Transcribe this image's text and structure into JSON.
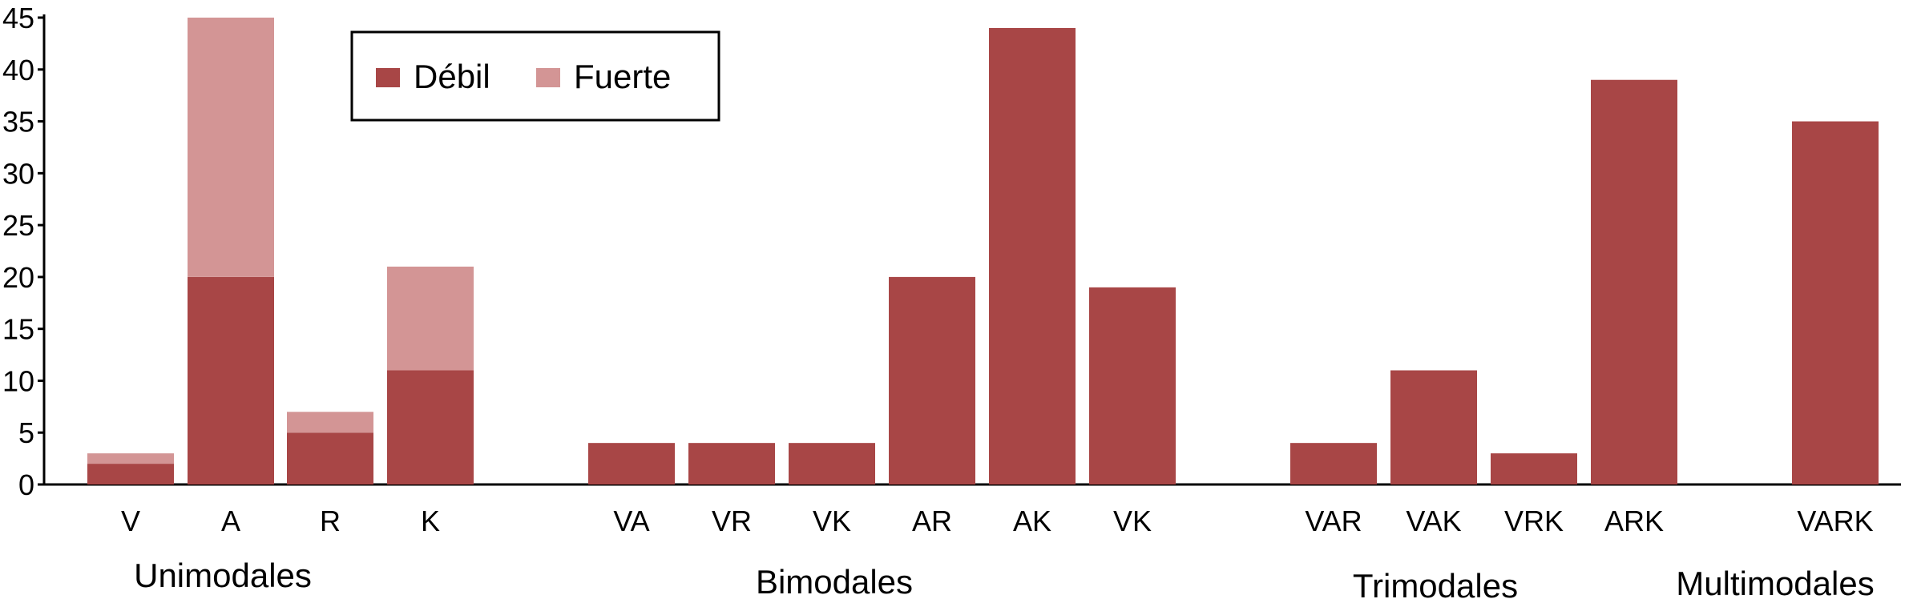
{
  "chart_data": {
    "type": "bar",
    "stacked": true,
    "ylim": [
      0,
      45
    ],
    "yticks": [
      0,
      5,
      10,
      15,
      20,
      25,
      30,
      35,
      40,
      45
    ],
    "categories": [
      "V",
      "A",
      "R",
      "K",
      "VA",
      "VR",
      "VK",
      "AR",
      "AK",
      "VK",
      "VAR",
      "VAK",
      "VRK",
      "ARK",
      "VARK"
    ],
    "groups": [
      {
        "label": "Unimodales",
        "categories": [
          "V",
          "A",
          "R",
          "K"
        ]
      },
      {
        "label": "Bimodales",
        "categories": [
          "VA",
          "VR",
          "VK",
          "AR",
          "AK",
          "VK"
        ]
      },
      {
        "label": "Trimodales",
        "categories": [
          "VAR",
          "VAK",
          "VRK",
          "ARK"
        ]
      },
      {
        "label": "Multimodales",
        "categories": [
          "VARK"
        ]
      }
    ],
    "series": [
      {
        "name": "Débil",
        "color": "#a84646",
        "values": [
          2,
          20,
          5,
          11,
          4,
          4,
          4,
          20,
          44,
          19,
          4,
          11,
          3,
          39,
          35
        ]
      },
      {
        "name": "Fuerte",
        "color": "#d39595",
        "values": [
          1,
          25,
          2,
          10,
          0,
          0,
          0,
          0,
          0,
          0,
          0,
          0,
          0,
          0,
          0
        ]
      }
    ],
    "legend_position": "top-left",
    "grid": false
  }
}
